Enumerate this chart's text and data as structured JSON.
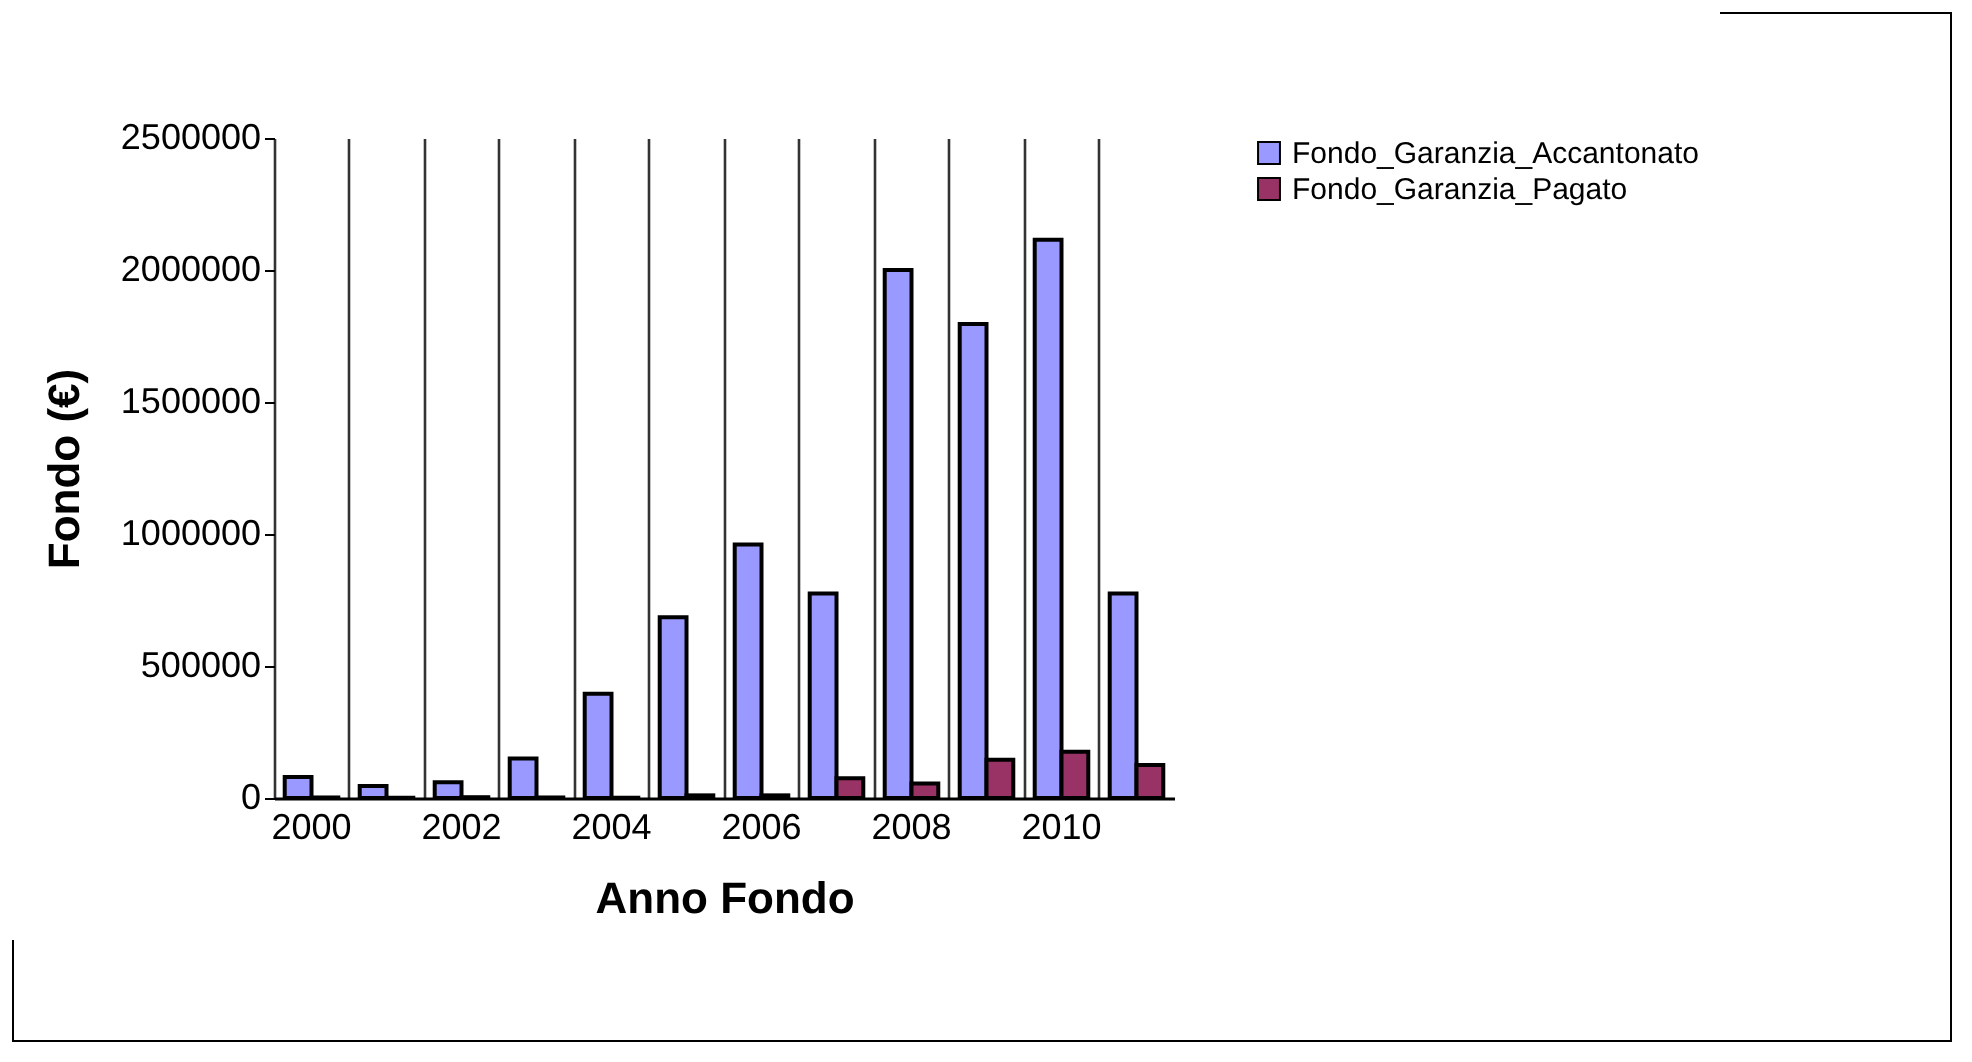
{
  "chart_data": {
    "type": "bar",
    "xlabel": "Anno Fondo",
    "ylabel": "Fondo (€)",
    "categories": [
      "2000",
      null,
      "2002",
      null,
      "2004",
      null,
      "2006",
      null,
      "2008",
      null,
      "2010",
      null
    ],
    "series": [
      {
        "name": "Fondo_Garanzia_Accantonato",
        "color": "#9999ff",
        "values": [
          80000,
          45000,
          60000,
          150000,
          395000,
          685000,
          960000,
          775000,
          2000000,
          1795000,
          2115000,
          775000
        ]
      },
      {
        "name": "Fondo_Garanzia_Pagato",
        "color": "#993366",
        "values": [
          2000,
          1000,
          3000,
          2000,
          1000,
          10000,
          10000,
          75000,
          55000,
          145000,
          175000,
          125000
        ]
      }
    ],
    "ylim": [
      0,
      2500000
    ],
    "yticks": [
      0,
      500000,
      1000000,
      1500000,
      2000000,
      2500000
    ],
    "grid": "x",
    "legend": "right"
  }
}
